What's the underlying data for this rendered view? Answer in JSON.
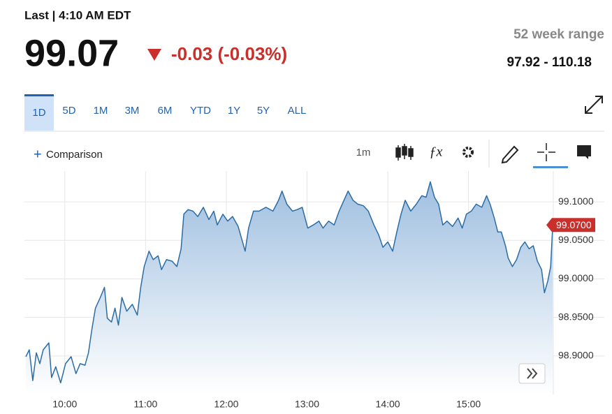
{
  "header": {
    "status": "Last | 4:10 AM EDT",
    "price": "99.07",
    "change": "-0.03 (-0.03%)"
  },
  "range": {
    "title": "52 week range",
    "value": "97.92 - 110.18"
  },
  "tabs": [
    "1D",
    "5D",
    "1M",
    "3M",
    "6M",
    "YTD",
    "1Y",
    "5Y",
    "ALL"
  ],
  "toolbar": {
    "comparison": "Comparison",
    "interval": "1m"
  },
  "chart_data": {
    "type": "line",
    "color": "#2b6ca3",
    "grid": true,
    "x": [
      9.517,
      9.56,
      9.603,
      9.647,
      9.69,
      9.733,
      9.802,
      9.836,
      9.888,
      9.948,
      10.009,
      10.078,
      10.138,
      10.19,
      10.25,
      10.293,
      10.336,
      10.379,
      10.44,
      10.491,
      10.526,
      10.578,
      10.621,
      10.664,
      10.707,
      10.767,
      10.836,
      10.897,
      10.94,
      10.983,
      11.043,
      11.095,
      11.155,
      11.198,
      11.259,
      11.328,
      11.388,
      11.44,
      11.474,
      11.526,
      11.586,
      11.647,
      11.716,
      11.784,
      11.845,
      11.888,
      11.957,
      12.017,
      12.078,
      12.147,
      12.19,
      12.233,
      12.276,
      12.336,
      12.405,
      12.491,
      12.578,
      12.647,
      12.69,
      12.75,
      12.819,
      12.879,
      12.94,
      13.009,
      13.078,
      13.147,
      13.198,
      13.267,
      13.336,
      13.397,
      13.457,
      13.509,
      13.569,
      13.629,
      13.698,
      13.759,
      13.828,
      13.888,
      13.94,
      14.0,
      14.06,
      14.112,
      14.164,
      14.216,
      14.284,
      14.353,
      14.422,
      14.474,
      14.526,
      14.578,
      14.629,
      14.681,
      14.733,
      14.802,
      14.871,
      14.922,
      14.974,
      15.034,
      15.095,
      15.164,
      15.224,
      15.267,
      15.319,
      15.362,
      15.405,
      15.457,
      15.491,
      15.543,
      15.595,
      15.647,
      15.698,
      15.75,
      15.802,
      15.853,
      15.905,
      15.94,
      15.983,
      16.017,
      16.043
    ],
    "values": [
      98.899,
      98.908,
      98.868,
      98.904,
      98.89,
      98.908,
      98.917,
      98.872,
      98.886,
      98.865,
      98.89,
      98.899,
      98.877,
      98.89,
      98.888,
      98.904,
      98.935,
      98.962,
      98.976,
      98.989,
      98.949,
      98.944,
      98.962,
      98.94,
      98.976,
      98.958,
      98.967,
      98.953,
      98.989,
      99.016,
      99.036,
      99.025,
      99.03,
      99.012,
      99.025,
      99.023,
      99.016,
      99.039,
      99.084,
      99.09,
      99.088,
      99.081,
      99.093,
      99.077,
      99.088,
      99.07,
      99.084,
      99.075,
      99.081,
      99.068,
      99.052,
      99.036,
      99.066,
      99.088,
      99.088,
      99.093,
      99.088,
      99.102,
      99.114,
      99.097,
      99.088,
      99.09,
      99.093,
      99.066,
      99.07,
      99.075,
      99.066,
      99.075,
      99.07,
      99.088,
      99.102,
      99.114,
      99.102,
      99.097,
      99.095,
      99.088,
      99.07,
      99.057,
      99.041,
      99.048,
      99.036,
      99.061,
      99.084,
      99.102,
      99.088,
      99.097,
      99.108,
      99.106,
      99.126,
      99.106,
      99.097,
      99.07,
      99.075,
      99.068,
      99.079,
      99.066,
      99.084,
      99.088,
      99.097,
      99.093,
      99.108,
      99.097,
      99.079,
      99.061,
      99.061,
      99.043,
      99.027,
      99.016,
      99.025,
      99.041,
      99.048,
      99.039,
      99.043,
      99.023,
      99.012,
      98.982,
      98.998,
      99.016,
      99.07
    ],
    "xlim": [
      9.5,
      16.05
    ],
    "ylim": [
      98.85,
      99.14
    ],
    "xticks": [
      {
        "value": 10,
        "label": "10:00"
      },
      {
        "value": 11,
        "label": "11:00"
      },
      {
        "value": 12,
        "label": "12:00"
      },
      {
        "value": 13,
        "label": "13:00"
      },
      {
        "value": 14,
        "label": "14:00"
      },
      {
        "value": 15,
        "label": "15:00"
      }
    ],
    "yticks": [
      {
        "value": 98.9,
        "label": "98.9000"
      },
      {
        "value": 98.95,
        "label": "98.9500"
      },
      {
        "value": 99,
        "label": "99.0000"
      },
      {
        "value": 99.05,
        "label": "99.0500"
      },
      {
        "value": 99.1,
        "label": "99.1000"
      }
    ],
    "last_price": {
      "value": 99.07,
      "label": "99.0700"
    }
  }
}
